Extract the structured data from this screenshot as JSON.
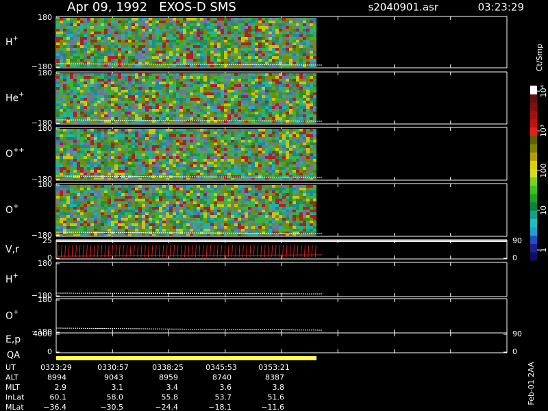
{
  "header": {
    "title": "Apr 09, 1992   EXOS-D SMS",
    "file": "s2040901.asr",
    "time": "03:23:29"
  },
  "chart_data": [
    {
      "type": "spectrogram",
      "label": "H",
      "label_superscript": "+",
      "ylim": [
        -180,
        180
      ],
      "yticks": [
        {
          "value": -180,
          "label": "−180"
        },
        180
      ]
    },
    {
      "type": "spectrogram",
      "label": "He",
      "label_superscript": "+",
      "ylim": [
        -180,
        180
      ],
      "yticks": [
        {
          "value": -180,
          "label": "−180"
        },
        180
      ]
    },
    {
      "type": "spectrogram",
      "label": "O",
      "label_superscript": "++",
      "ylim": [
        -180,
        180
      ],
      "yticks": [
        {
          "value": -180,
          "label": "−180"
        },
        180
      ]
    },
    {
      "type": "spectrogram",
      "label": "O",
      "label_superscript": "+",
      "ylim": [
        -180,
        180
      ],
      "yticks": [
        {
          "value": -180,
          "label": "−180"
        },
        180
      ]
    },
    {
      "type": "line",
      "label": "V,r",
      "ylim": [
        0,
        25
      ],
      "yticks": [
        0,
        25
      ],
      "y2lim": [
        0,
        90
      ],
      "y2ticks": [
        0,
        90
      ]
    },
    {
      "type": "line",
      "label": "H",
      "label_superscript": "+",
      "ylim": [
        -180,
        180
      ],
      "yticks": [
        {
          "value": -180,
          "label": "−180"
        },
        180
      ]
    },
    {
      "type": "line",
      "label": "O",
      "label_superscript": "+",
      "ylim": [
        -180,
        180
      ],
      "yticks": [
        {
          "value": -180,
          "label": "−180"
        },
        180
      ]
    },
    {
      "type": "line",
      "label": "E,p",
      "qa_label": "QA",
      "ylim": [
        0,
        4000
      ],
      "yticks": [
        0,
        4000
      ],
      "y2lim": [
        0,
        90
      ],
      "y2ticks": [
        0,
        90
      ]
    }
  ],
  "colorbar": {
    "title": "Ct/Smp",
    "log": true,
    "clim": [
      0.55,
      13800
    ],
    "ticks": [
      {
        "value": 1,
        "label": "1"
      },
      {
        "value": 10,
        "label": "10"
      },
      {
        "value": 100,
        "label": "100"
      },
      {
        "value": 1000,
        "label": "10³"
      },
      {
        "value": 10000,
        "label": "10⁴"
      }
    ]
  },
  "ephemeris": {
    "rows": [
      {
        "name": "UT",
        "values": [
          "0323:29",
          "0330:57",
          "0338:25",
          "0345:53",
          "0353:21"
        ]
      },
      {
        "name": "ALT",
        "values": [
          "8994",
          "9043",
          "8959",
          "8740",
          "8387"
        ]
      },
      {
        "name": "MLT",
        "values": [
          "2.9",
          "3.1",
          "3.4",
          "3.6",
          "3.8"
        ]
      },
      {
        "name": "InLat",
        "values": [
          "60.1",
          "58.0",
          "55.8",
          "53.7",
          "51.6"
        ]
      },
      {
        "name": "MLat",
        "values": [
          "−36.4",
          "−30.5",
          "−24.4",
          "−18.1",
          "−11.6"
        ]
      }
    ]
  },
  "footer": "Feb-01 2AA"
}
